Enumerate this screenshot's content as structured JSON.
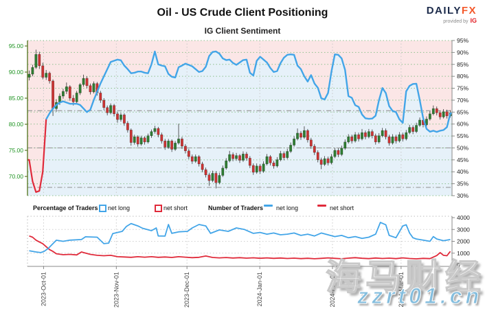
{
  "header": {
    "title": "Oil - US Crude Client Positioning",
    "subtitle": "IG Client Sentiment",
    "logo": {
      "brand_primary": "DAILY",
      "brand_accent": "FX",
      "provided_by": "provided by",
      "provider": "IG"
    }
  },
  "legend": {
    "percentage_title": "Percentage of Traders",
    "percentage_net_long": "net long",
    "percentage_net_short": "net short",
    "number_title": "Number of Traders",
    "number_net_long": "net long",
    "number_net_short": "net short"
  },
  "watermark": {
    "cjk": "海马财经",
    "latin": "zzrt01.cn"
  },
  "colors": {
    "long_blue": "#42a5e8",
    "short_red": "#e02a3a",
    "candle_up": "#2f7d32",
    "candle_down": "#cc3333",
    "wick": "#333333",
    "bg_above_line": "#fbe6e6",
    "bg_below_line": "#e6f1f9",
    "grid_green": "#8cc08c",
    "grid_gray": "#c9c9c9",
    "ref_gray": "#9a9a9a",
    "axis_left_line": "#5b7a29",
    "price_label_green": "#1e9321",
    "axis_dark": "#888888",
    "tick_label_dark": "#222222",
    "xlabel_gray": "#444444",
    "logo_navy": "#1b2a4a",
    "logo_orange": "#f4582a",
    "ig_red": "#e21f26"
  },
  "chart_data": {
    "type": "candlestick+line",
    "title": "IG Client Sentiment",
    "legend_position": "below",
    "grid": true,
    "price_axis": {
      "side": "left",
      "tick_labels": [
        "95.00",
        "90.00",
        "85.00",
        "80.00",
        "75.00",
        "70.00"
      ],
      "tick_values": [
        95,
        90,
        85,
        80,
        75,
        70
      ]
    },
    "sentiment_axis": {
      "side": "right",
      "unit": "%",
      "tick_values": [
        95,
        90,
        85,
        80,
        75,
        70,
        65,
        60,
        55,
        50,
        45,
        40,
        35,
        30
      ],
      "range": [
        30,
        95
      ]
    },
    "count_axis": {
      "side": "right",
      "tick_values": [
        4000,
        3000,
        2000,
        1000,
        0
      ],
      "range": [
        0,
        4000
      ]
    },
    "x_axis": {
      "months": [
        {
          "label": "2023-Oct-01",
          "day": 4.24
        },
        {
          "label": "2023-Nov-01",
          "day": 25.66
        },
        {
          "label": "2023-Dec-01",
          "day": 46.46
        },
        {
          "label": "2024-Jan-01",
          "day": 67.9
        },
        {
          "label": "2024-Feb-01",
          "day": 89.3
        },
        {
          "label": "2024-Mar-01",
          "day": 109.5
        }
      ]
    },
    "reference_lines": {
      "price_levels": [
        82.6,
        67.9
      ],
      "sentiment_level": 50
    },
    "sentiment_color_rule": "red below 50%, blue above 50%; pink shading above line, light blue below",
    "candles_ohlc": [
      [
        89.0,
        90.3,
        88.4,
        89.6
      ],
      [
        89.6,
        91.4,
        89.2,
        90.9
      ],
      [
        90.9,
        94.3,
        90.6,
        93.4
      ],
      [
        93.4,
        93.9,
        90.6,
        91.2
      ],
      [
        91.2,
        91.8,
        88.6,
        89.0
      ],
      [
        89.0,
        90.4,
        88.5,
        89.8
      ],
      [
        89.8,
        90.1,
        87.8,
        88.3
      ],
      [
        88.3,
        88.6,
        81.6,
        83.0
      ],
      [
        83.0,
        84.8,
        82.4,
        84.2
      ],
      [
        84.2,
        85.9,
        83.7,
        85.4
      ],
      [
        85.4,
        86.8,
        84.9,
        86.3
      ],
      [
        86.3,
        88.0,
        85.8,
        87.2
      ],
      [
        87.2,
        87.5,
        84.5,
        85.0
      ],
      [
        85.0,
        85.6,
        83.6,
        84.3
      ],
      [
        84.3,
        86.4,
        84.0,
        86.0
      ],
      [
        86.0,
        87.9,
        85.6,
        87.6
      ],
      [
        87.6,
        89.5,
        87.2,
        88.8
      ],
      [
        88.8,
        89.2,
        86.9,
        87.4
      ],
      [
        87.4,
        87.8,
        85.7,
        86.2
      ],
      [
        86.2,
        88.2,
        85.9,
        87.8
      ],
      [
        87.8,
        88.1,
        85.5,
        86.0
      ],
      [
        86.0,
        86.4,
        84.1,
        84.6
      ],
      [
        84.6,
        85.0,
        82.7,
        83.2
      ],
      [
        83.2,
        83.6,
        81.7,
        82.2
      ],
      [
        82.2,
        84.0,
        81.9,
        83.6
      ],
      [
        83.6,
        83.9,
        81.5,
        82.0
      ],
      [
        82.0,
        82.4,
        80.3,
        80.9
      ],
      [
        80.9,
        82.2,
        80.5,
        81.8
      ],
      [
        81.8,
        82.1,
        79.7,
        80.2
      ],
      [
        80.2,
        80.6,
        78.4,
        78.9
      ],
      [
        78.9,
        79.2,
        75.9,
        76.5
      ],
      [
        76.5,
        78.0,
        76.1,
        77.6
      ],
      [
        77.6,
        77.9,
        75.7,
        76.2
      ],
      [
        76.2,
        77.8,
        75.9,
        77.4
      ],
      [
        77.4,
        77.7,
        76.1,
        76.6
      ],
      [
        76.6,
        78.2,
        76.3,
        77.8
      ],
      [
        77.8,
        79.0,
        77.4,
        78.6
      ],
      [
        78.6,
        79.7,
        78.2,
        79.2
      ],
      [
        79.2,
        79.5,
        77.5,
        78.0
      ],
      [
        78.0,
        78.4,
        76.3,
        76.8
      ],
      [
        76.8,
        77.2,
        75.1,
        75.6
      ],
      [
        75.6,
        77.2,
        75.3,
        76.8
      ],
      [
        76.8,
        77.1,
        74.7,
        75.2
      ],
      [
        75.2,
        76.8,
        74.9,
        76.4
      ],
      [
        76.4,
        80.1,
        76.1,
        77.2
      ],
      [
        77.2,
        77.6,
        75.3,
        75.8
      ],
      [
        75.8,
        76.2,
        74.4,
        74.9
      ],
      [
        74.9,
        75.3,
        73.3,
        73.8
      ],
      [
        73.8,
        74.2,
        72.4,
        72.9
      ],
      [
        72.9,
        74.2,
        72.6,
        73.8
      ],
      [
        73.8,
        74.1,
        71.9,
        72.4
      ],
      [
        72.4,
        72.8,
        70.8,
        71.3
      ],
      [
        71.3,
        71.7,
        69.8,
        70.3
      ],
      [
        70.3,
        70.7,
        68.2,
        69.2
      ],
      [
        69.2,
        71.1,
        68.9,
        70.6
      ],
      [
        70.6,
        71.0,
        67.7,
        68.8
      ],
      [
        68.8,
        70.7,
        68.5,
        70.2
      ],
      [
        70.2,
        72.1,
        69.9,
        71.6
      ],
      [
        71.6,
        73.5,
        71.3,
        73.0
      ],
      [
        73.0,
        74.9,
        72.7,
        74.2
      ],
      [
        74.2,
        74.6,
        72.9,
        73.4
      ],
      [
        73.4,
        74.5,
        73.0,
        74.0
      ],
      [
        74.0,
        74.3,
        72.6,
        73.1
      ],
      [
        73.1,
        74.8,
        72.8,
        74.3
      ],
      [
        74.3,
        74.7,
        73.0,
        73.5
      ],
      [
        73.5,
        73.9,
        71.6,
        72.1
      ],
      [
        72.1,
        72.5,
        70.3,
        70.8
      ],
      [
        70.8,
        72.5,
        70.5,
        72.0
      ],
      [
        72.0,
        72.4,
        70.5,
        71.0
      ],
      [
        71.0,
        72.9,
        70.7,
        72.4
      ],
      [
        72.4,
        74.3,
        72.1,
        73.8
      ],
      [
        73.8,
        74.1,
        72.1,
        72.6
      ],
      [
        72.6,
        73.0,
        71.5,
        72.0
      ],
      [
        72.0,
        73.7,
        71.7,
        73.2
      ],
      [
        73.2,
        74.9,
        72.9,
        74.4
      ],
      [
        74.4,
        74.8,
        73.1,
        73.6
      ],
      [
        73.6,
        75.3,
        73.3,
        74.8
      ],
      [
        74.8,
        76.5,
        74.5,
        76.0
      ],
      [
        76.0,
        77.7,
        75.7,
        77.2
      ],
      [
        77.2,
        79.2,
        76.9,
        78.3
      ],
      [
        78.3,
        78.7,
        77.0,
        77.5
      ],
      [
        77.5,
        79.6,
        77.2,
        78.8
      ],
      [
        78.8,
        79.1,
        76.5,
        77.0
      ],
      [
        77.0,
        77.4,
        75.3,
        75.8
      ],
      [
        75.8,
        76.2,
        74.1,
        74.6
      ],
      [
        74.6,
        75.0,
        72.7,
        73.2
      ],
      [
        73.2,
        73.6,
        71.4,
        72.3
      ],
      [
        72.3,
        73.9,
        72.0,
        73.4
      ],
      [
        73.4,
        73.8,
        72.1,
        72.6
      ],
      [
        72.6,
        74.3,
        72.3,
        73.8
      ],
      [
        73.8,
        75.5,
        73.5,
        75.0
      ],
      [
        75.0,
        75.4,
        73.7,
        74.2
      ],
      [
        74.2,
        75.9,
        73.9,
        75.4
      ],
      [
        75.4,
        77.1,
        75.1,
        76.6
      ],
      [
        76.6,
        78.1,
        76.3,
        77.6
      ],
      [
        77.6,
        78.0,
        76.3,
        76.8
      ],
      [
        76.8,
        78.5,
        76.5,
        78.0
      ],
      [
        78.0,
        78.4,
        76.7,
        77.2
      ],
      [
        77.2,
        79.1,
        76.9,
        78.4
      ],
      [
        78.4,
        78.8,
        77.1,
        77.6
      ],
      [
        77.6,
        79.1,
        77.3,
        78.6
      ],
      [
        78.6,
        79.0,
        77.3,
        77.8
      ],
      [
        77.8,
        78.2,
        76.1,
        76.6
      ],
      [
        76.6,
        78.3,
        76.3,
        77.8
      ],
      [
        77.8,
        79.3,
        77.5,
        78.8
      ],
      [
        78.8,
        79.2,
        77.1,
        77.6
      ],
      [
        77.6,
        78.0,
        75.9,
        76.4
      ],
      [
        76.4,
        78.1,
        76.1,
        77.6
      ],
      [
        77.6,
        78.0,
        76.3,
        76.8
      ],
      [
        76.8,
        78.5,
        76.5,
        78.0
      ],
      [
        78.0,
        78.4,
        76.7,
        77.2
      ],
      [
        77.2,
        78.9,
        76.9,
        78.4
      ],
      [
        78.4,
        79.9,
        78.1,
        79.4
      ],
      [
        79.4,
        79.8,
        78.1,
        78.6
      ],
      [
        78.6,
        80.3,
        78.3,
        79.8
      ],
      [
        79.8,
        81.3,
        79.5,
        80.8
      ],
      [
        80.8,
        81.2,
        79.4,
        79.9
      ],
      [
        79.9,
        81.5,
        79.6,
        81.0
      ],
      [
        81.0,
        82.5,
        80.7,
        82.0
      ],
      [
        82.0,
        83.6,
        81.7,
        83.0
      ],
      [
        83.0,
        83.4,
        81.7,
        82.2
      ],
      [
        82.2,
        82.6,
        80.9,
        81.4
      ],
      [
        81.4,
        82.9,
        81.1,
        82.4
      ],
      [
        82.4,
        82.8,
        81.1,
        81.6
      ],
      [
        81.6,
        82.7,
        81.3,
        82.2
      ]
    ],
    "net_long_pct": [
      45,
      36,
      31.5,
      32,
      40,
      62,
      64.5,
      66.5,
      68,
      69,
      69.5,
      69,
      68.5,
      68.5,
      68.5,
      68,
      66.5,
      65,
      66,
      70,
      73.5,
      77,
      80,
      83,
      86,
      86.5,
      87,
      86.7,
      84.5,
      83,
      81.3,
      81.5,
      82,
      82,
      81.5,
      81.3,
      85,
      90.4,
      85,
      84.5,
      84.2,
      81,
      79.8,
      79.5,
      83.8,
      84.5,
      85.3,
      84.8,
      84.2,
      83,
      81.8,
      82.2,
      84,
      88.5,
      90.2,
      90.4,
      89.5,
      87.5,
      86.8,
      87,
      85.6,
      84.8,
      85.8,
      86.8,
      87,
      81.5,
      80.3,
      86.5,
      88.2,
      87,
      85.8,
      83.5,
      81.8,
      82.2,
      85.5,
      87.8,
      89,
      89.2,
      89,
      84.5,
      83,
      80,
      77.8,
      80.5,
      77,
      75.2,
      70.8,
      70.3,
      73,
      82,
      89.2,
      89,
      87.5,
      82.7,
      71.7,
      71,
      67.9,
      67.2,
      64,
      62.4,
      62.2,
      62.3,
      63.5,
      70,
      75.1,
      73,
      67.5,
      65.5,
      65,
      62,
      60.5,
      73.7,
      76,
      76.8,
      76.9,
      70,
      62.5,
      58,
      56.8,
      57.2,
      56.7,
      57.2,
      57.5,
      58.7,
      64.5
    ],
    "traders_long": [
      [
        0,
        1200
      ],
      [
        2,
        1100
      ],
      [
        3.4,
        1050
      ],
      [
        4.4,
        1150
      ],
      [
        5.6,
        1400
      ],
      [
        8,
        2090
      ],
      [
        10,
        2000
      ],
      [
        12,
        2100
      ],
      [
        15.4,
        2150
      ],
      [
        16.6,
        2380
      ],
      [
        20,
        2350
      ],
      [
        22,
        1800
      ],
      [
        23.4,
        1850
      ],
      [
        24.6,
        2650
      ],
      [
        27.4,
        2840
      ],
      [
        28.6,
        3250
      ],
      [
        30,
        3500
      ],
      [
        32,
        3300
      ],
      [
        33.4,
        3100
      ],
      [
        36,
        2900
      ],
      [
        37.4,
        3130
      ],
      [
        38,
        2450
      ],
      [
        40,
        2440
      ],
      [
        41,
        3420
      ],
      [
        42,
        2670
      ],
      [
        44,
        2800
      ],
      [
        46.6,
        2840
      ],
      [
        48,
        3130
      ],
      [
        50,
        3420
      ],
      [
        52,
        3300
      ],
      [
        53.4,
        2670
      ],
      [
        56,
        2960
      ],
      [
        58.6,
        2840
      ],
      [
        61,
        3130
      ],
      [
        63.4,
        3000
      ],
      [
        66,
        2670
      ],
      [
        68,
        2750
      ],
      [
        70,
        2600
      ],
      [
        72,
        2700
      ],
      [
        74,
        2550
      ],
      [
        76,
        2600
      ],
      [
        78,
        2700
      ],
      [
        80,
        2500
      ],
      [
        82,
        2600
      ],
      [
        84,
        2450
      ],
      [
        86,
        2700
      ],
      [
        88,
        2550
      ],
      [
        90,
        2400
      ],
      [
        92,
        2500
      ],
      [
        94,
        2300
      ],
      [
        96,
        2400
      ],
      [
        98,
        2250
      ],
      [
        100,
        2350
      ],
      [
        102,
        2600
      ],
      [
        103.4,
        3600
      ],
      [
        105,
        3400
      ],
      [
        106,
        2500
      ],
      [
        108,
        2300
      ],
      [
        110,
        3300
      ],
      [
        111,
        3400
      ],
      [
        112,
        2700
      ],
      [
        113,
        2300
      ],
      [
        114,
        2200
      ],
      [
        116,
        2100
      ],
      [
        118,
        2000
      ],
      [
        119,
        2400
      ],
      [
        120,
        2200
      ],
      [
        122,
        2050
      ],
      [
        124,
        2150
      ]
    ],
    "traders_short": [
      [
        0,
        2450
      ],
      [
        1,
        2350
      ],
      [
        2,
        2100
      ],
      [
        3,
        1950
      ],
      [
        4,
        1800
      ],
      [
        5,
        1550
      ],
      [
        5.6,
        1400
      ],
      [
        6,
        1300
      ],
      [
        7,
        1150
      ],
      [
        8,
        950
      ],
      [
        10,
        870
      ],
      [
        12,
        900
      ],
      [
        14,
        850
      ],
      [
        15.4,
        1100
      ],
      [
        16,
        1050
      ],
      [
        18,
        900
      ],
      [
        20,
        820
      ],
      [
        22,
        780
      ],
      [
        24,
        820
      ],
      [
        26,
        700
      ],
      [
        28,
        680
      ],
      [
        30,
        650
      ],
      [
        32,
        700
      ],
      [
        34,
        660
      ],
      [
        36,
        700
      ],
      [
        38,
        650
      ],
      [
        40,
        680
      ],
      [
        42,
        640
      ],
      [
        44,
        700
      ],
      [
        46,
        660
      ],
      [
        48,
        620
      ],
      [
        50,
        650
      ],
      [
        52,
        760
      ],
      [
        54,
        640
      ],
      [
        56,
        600
      ],
      [
        58,
        630
      ],
      [
        60,
        590
      ],
      [
        62,
        620
      ],
      [
        64,
        580
      ],
      [
        66,
        610
      ],
      [
        68,
        570
      ],
      [
        70,
        600
      ],
      [
        72,
        560
      ],
      [
        74,
        590
      ],
      [
        76,
        550
      ],
      [
        78,
        580
      ],
      [
        80,
        540
      ],
      [
        82,
        570
      ],
      [
        84,
        530
      ],
      [
        86,
        560
      ],
      [
        88,
        600
      ],
      [
        90,
        560
      ],
      [
        92,
        530
      ],
      [
        94,
        580
      ],
      [
        96,
        620
      ],
      [
        98,
        570
      ],
      [
        100,
        540
      ],
      [
        102,
        590
      ],
      [
        104,
        550
      ],
      [
        106,
        580
      ],
      [
        108,
        540
      ],
      [
        110,
        600
      ],
      [
        112,
        550
      ],
      [
        114,
        520
      ],
      [
        116,
        560
      ],
      [
        118,
        540
      ],
      [
        120,
        800
      ],
      [
        121,
        1050
      ],
      [
        122,
        820
      ],
      [
        123,
        780
      ],
      [
        124,
        1150
      ]
    ]
  }
}
